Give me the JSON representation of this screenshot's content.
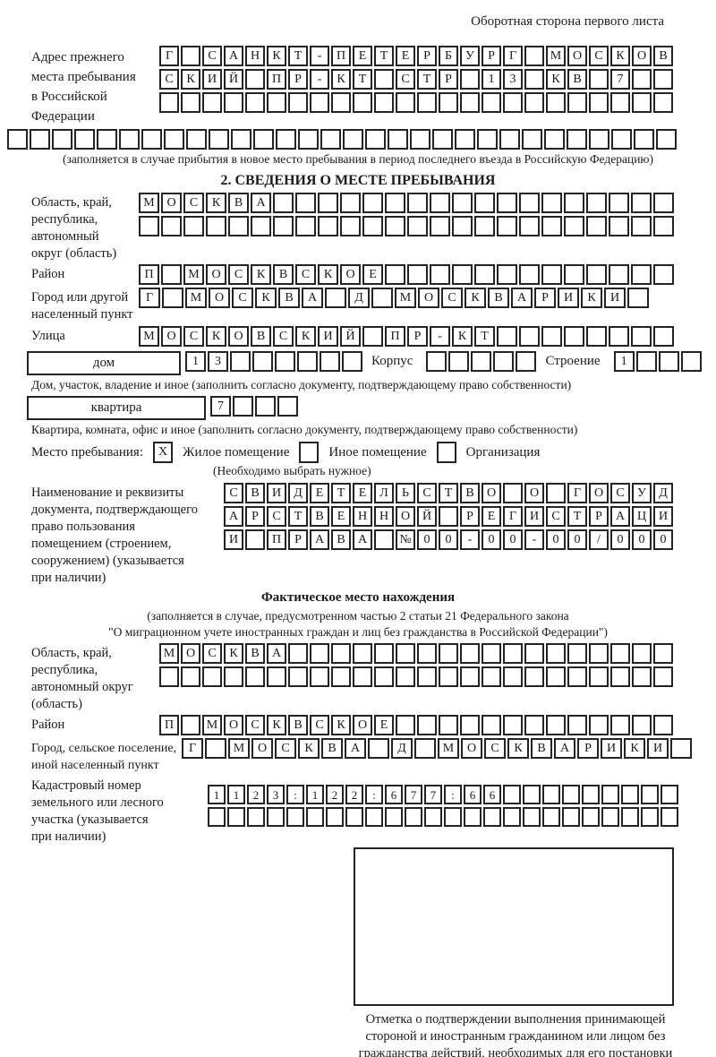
{
  "header": {
    "note": "Оборотная сторона первого листа"
  },
  "prev_address": {
    "label": "Адрес прежнего\nместа пребывания\nв Российской\nФедерации",
    "line1": "Г САНКТ-ПЕТЕРБУРГ МОСКОВ",
    "line2": "СКИЙ ПР-КТ СТР 13 КВ 7  ",
    "line3": "                        ",
    "overflow": "                              ",
    "caption": "(заполняется в случае прибытия в новое место пребывания в период последнего въезда в Российскую Федерацию)"
  },
  "section2": {
    "title": "2. СВЕДЕНИЯ О МЕСТЕ ПРЕБЫВАНИЯ",
    "oblast_label": "Область, край,\nреспублика,\nавтономный\nокруг (область)",
    "oblast_line1": "МОСКВА                  ",
    "oblast_line2": "                        ",
    "raion_label": "Район",
    "raion_line": "П МОСКВСКОЕ             ",
    "gorod_label": "Город или другой\nнаселенный пункт",
    "gorod_line": "Г МОСКВА Д МОСКВАРИКИ ",
    "ulitsa_label": "Улица",
    "ulitsa_line": "МОСКОВСКИЙ ПР-КТ        ",
    "dom_label": "дом",
    "dom_line": "13      ",
    "korpus_label": "Корпус",
    "korpus_line": "     ",
    "stroenie_label": "Строение",
    "stroenie_line": "1   ",
    "dom_caption": "Дом, участок, владение и иное (заполнить согласно документу, подтверждающему право собственности)",
    "kvartira_label": "квартира",
    "kvartira_line": "7   ",
    "kvartira_caption": "Квартира, комната, офис и иное (заполнить согласно документу, подтверждающему право собственности)",
    "mesto_label": "Место пребывания:",
    "opt1_mark": "X",
    "opt1_label": "Жилое помещение",
    "opt2_mark": "",
    "opt2_label": "Иное помещение",
    "opt3_mark": "",
    "opt3_label": "Организация",
    "mesto_note": "(Необходимо выбрать нужное)",
    "doc_label": "Наименование и реквизиты\nдокумента, подтверждающего\nправо пользования\nпомещением (строением,\nсооружением) (указывается\nпри наличии)",
    "doc_line1": "СВИДЕТЕЛЬСТВО О ГОСУД",
    "doc_line2": "АРСТВЕННОЙ РЕГИСТРАЦИ",
    "doc_line3": "И ПРАВА №00-00-00/000"
  },
  "factual": {
    "title": "Фактическое место нахождения",
    "caption1": "(заполняется в случае, предусмотренном частью 2 статьи 21 Федерального закона",
    "caption2": "\"О миграционном учете иностранных граждан и лиц без гражданства в Российской Федерации\")",
    "oblast_label": "Область, край,\nреспублика,\nавтономный округ\n(область)",
    "oblast_line1": "МОСКВА                  ",
    "oblast_line2": "                        ",
    "raion_label": "Район",
    "raion_line": "П МОСКВСКОЕ             ",
    "gorod_label": "Город, сельское поселение,\nиной населенный пункт",
    "gorod_line": "Г МОСКВА Д МОСКВАРИКИ ",
    "cadastre_label": "Кадастровый номер\nземельного или лесного\nучастка (указывается\nпри наличии)",
    "cadastre_line1": "1123:122:677:66         ",
    "cadastre_line2": "                        ",
    "mark_note": "Отметка о подтверждении выполнения принимающей\nстороной и иностранным гражданином или лицом без\nгражданства действий, необходимых для его постановки\nна учет по месту пребывания"
  }
}
